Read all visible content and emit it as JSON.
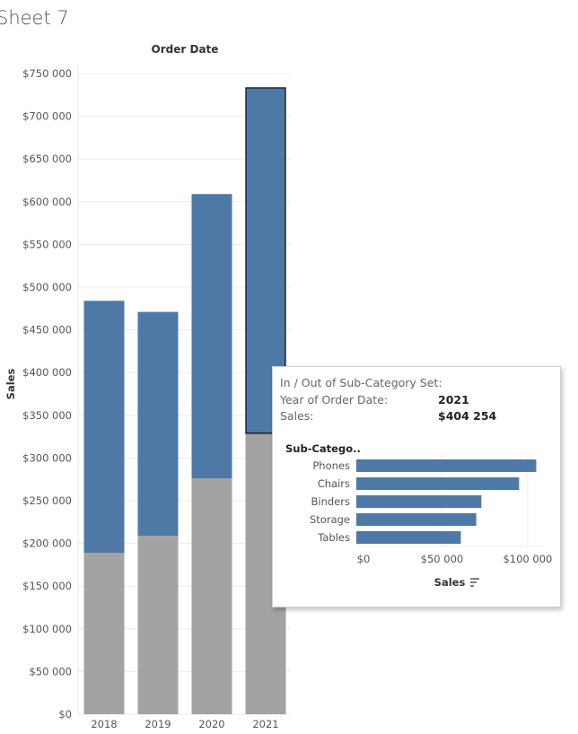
{
  "sheet_title": "Sheet 7",
  "colors": {
    "in_set": "#4e79a7",
    "out_set": "#a3a3a3",
    "grid": "#ececec",
    "text": "#555555"
  },
  "chart_data": [
    {
      "type": "bar",
      "stacked": true,
      "title": "Order Date",
      "xlabel": "",
      "ylabel": "Sales",
      "categories": [
        "2018",
        "2019",
        "2020",
        "2021"
      ],
      "series": [
        {
          "name": "Out",
          "values": [
            189000,
            209000,
            276000,
            329000
          ]
        },
        {
          "name": "In",
          "values": [
            295000,
            262000,
            333000,
            404254
          ]
        }
      ],
      "ylim": [
        0,
        750000
      ],
      "yticks": [
        0,
        50000,
        100000,
        150000,
        200000,
        250000,
        300000,
        350000,
        400000,
        450000,
        500000,
        550000,
        600000,
        650000,
        700000,
        750000
      ],
      "ytick_labels": [
        "$0",
        "$50 000",
        "$100 000",
        "$150 000",
        "$200 000",
        "$250 000",
        "$300 000",
        "$350 000",
        "$400 000",
        "$450 000",
        "$500 000",
        "$550 000",
        "$600 000",
        "$650 000",
        "$700 000",
        "$750 000"
      ],
      "highlighted_category": "2021",
      "grid": true
    },
    {
      "type": "bar",
      "orientation": "horizontal",
      "title": "",
      "row_header": "Sub-Catego..",
      "xlabel": "Sales",
      "categories": [
        "Phones",
        "Chairs",
        "Binders",
        "Storage",
        "Tables"
      ],
      "values": [
        105000,
        95000,
        73000,
        70000,
        61000
      ],
      "xlim": [
        0,
        110000
      ],
      "xticks": [
        0,
        50000,
        100000
      ],
      "xtick_labels": [
        "$0",
        "$50 000",
        "$100 000"
      ],
      "sort_icon": "sort-descending-icon"
    }
  ],
  "tooltip": {
    "set_label": "In / Out of Sub-Category Set:",
    "year_label": "Year of Order Date:",
    "year_value": "2021",
    "sales_label": "Sales:",
    "sales_value": "$404 254"
  }
}
